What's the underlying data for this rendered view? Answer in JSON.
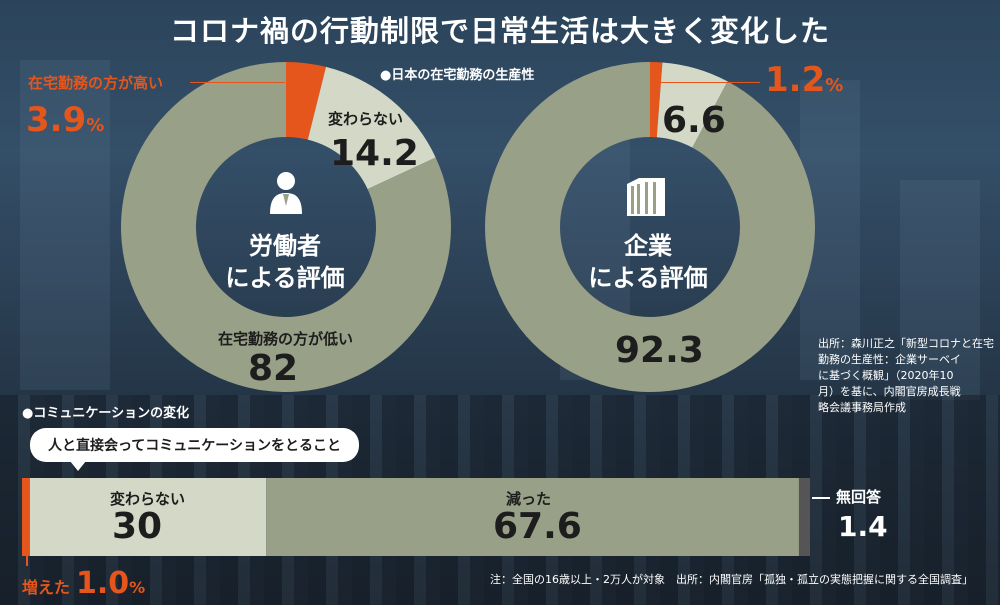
{
  "title": "コロナ禍の行動制限で日常生活は大きく変化した",
  "colors": {
    "orange": "#e4561b",
    "olive": "#98a087",
    "light": "#d4d8c6",
    "dark_gray": "#555555"
  },
  "labels": {
    "telework_productivity": "●日本の在宅勤務の生産性",
    "communication_change": "●コミュニケーションの変化",
    "worker_center_1": "労働者",
    "worker_center_2": "による評価",
    "company_center_1": "企業",
    "company_center_2": "による評価",
    "higher": "在宅勤務の方が高い",
    "higher_value": "3.9",
    "nochange": "変わらない",
    "lower": "在宅勤務の方が低い",
    "company_higher_value": "1.2",
    "percent": "%",
    "bubble": "人と直接会ってコミュニケーションをとること",
    "increased": "増えた",
    "increased_value": "1.0",
    "no_answer": "無回答",
    "source1": "出所：森川正之「新型コロナと在宅勤務の生産性：企業サーベイに基づく概観」（2020年10月）を基に、内閣官房成長戦略会議事務局作成",
    "source1_lines": [
      "出所：森川正之「新型コロナと在宅",
      "勤務の生産性：企業サーベイ",
      "に基づく概観」（2020年10",
      "月）を基に、内閣官房成長戦",
      "略会議事務局作成"
    ],
    "source2": "注：全国の16歳以上・2万人が対象　出所：内閣官房「孤独・孤立の実態把握に関する全国調査」"
  },
  "icons": {
    "worker": "person-icon",
    "company": "building-icon"
  },
  "chart_data": [
    {
      "type": "pie",
      "title": "労働者による評価",
      "categories": [
        "在宅勤務の方が高い",
        "変わらない",
        "在宅勤務の方が低い"
      ],
      "values": [
        3.9,
        14.2,
        82.0
      ],
      "unit": "%"
    },
    {
      "type": "pie",
      "title": "企業による評価",
      "categories": [
        "在宅勤務の方が高い",
        "変わらない",
        "在宅勤務の方が低い"
      ],
      "values": [
        1.2,
        6.6,
        92.3
      ],
      "unit": "%"
    },
    {
      "type": "bar",
      "title": "人と直接会ってコミュニケーションをとること",
      "orientation": "horizontal-stacked",
      "categories": [
        "増えた",
        "変わらない",
        "減った",
        "無回答"
      ],
      "values": [
        1.0,
        30.0,
        67.6,
        1.4
      ],
      "unit": "%"
    }
  ]
}
